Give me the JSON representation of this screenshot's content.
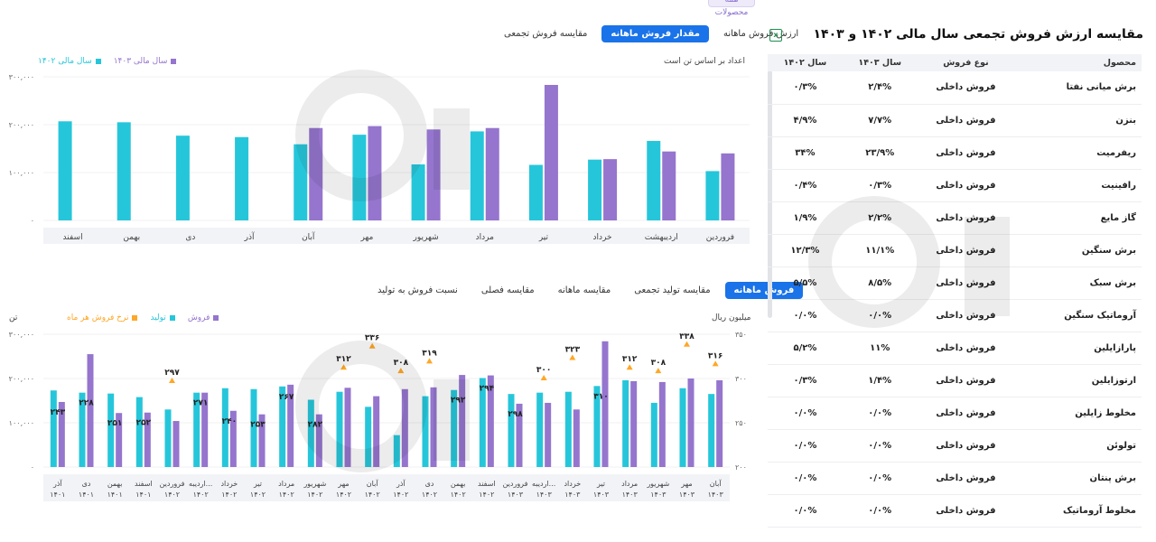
{
  "top_tag": "همه محصولات",
  "chart1": {
    "tabs": [
      "ارزش فروش ماهانه",
      "مقدار فروش ماهانه",
      "مقایسه فروش تجمعی"
    ],
    "active_tab": 1,
    "note": "اعداد بر اساس تن است",
    "legend": [
      {
        "name": "سال مالی ۱۴۰۳",
        "color": "#9575cd"
      },
      {
        "name": "سال مالی ۱۴۰۲",
        "color": "#26c6da"
      }
    ],
    "chart_data": {
      "type": "bar",
      "categories": [
        "فروردین",
        "اردیبهشت",
        "خرداد",
        "تیر",
        "مرداد",
        "شهریور",
        "مهر",
        "آبان",
        "آذر",
        "دی",
        "بهمن",
        "اسفند"
      ],
      "series": [
        {
          "name": "سال مالی ۱۴۰۲",
          "color": "#26c6da",
          "values": [
            103000,
            166000,
            127000,
            116000,
            186000,
            117000,
            179000,
            159000,
            174000,
            177000,
            205000,
            207000
          ]
        },
        {
          "name": "سال مالی ۱۴۰۳",
          "color": "#9575cd",
          "values": [
            140000,
            144000,
            128000,
            283000,
            193000,
            190000,
            197000,
            193000,
            null,
            null,
            null,
            null
          ]
        }
      ],
      "yticks": [
        "۰",
        "۱۰۰,۰۰۰",
        "۲۰۰,۰۰۰",
        "۳۰۰,۰۰۰"
      ],
      "ylim": [
        0,
        300000
      ],
      "direction": "rtl"
    }
  },
  "chart2": {
    "tabs": [
      "فروش ماهانه",
      "مقایسه تولید تجمعی",
      "مقایسه ماهانه",
      "مقایسه فصلی",
      "نسبت فروش به تولید"
    ],
    "active_tab": 0,
    "left_unit": "تن",
    "right_unit": "میلیون ریال",
    "legend": [
      {
        "name": "فروش",
        "color": "#9575cd"
      },
      {
        "name": "تولید",
        "color": "#26c6da"
      },
      {
        "name": "نرخ فروش هر ماه",
        "color": "#ffa726"
      }
    ],
    "chart_data": {
      "type": "bar",
      "categories": [
        [
          "آذر",
          "۱۴۰۱"
        ],
        [
          "دی",
          "۱۴۰۱"
        ],
        [
          "بهمن",
          "۱۴۰۱"
        ],
        [
          "اسفند",
          "۱۴۰۱"
        ],
        [
          "فروردین",
          "۱۴۰۲"
        ],
        [
          "اردیبه...",
          "۱۴۰۲"
        ],
        [
          "خرداد",
          "۱۴۰۲"
        ],
        [
          "تیر",
          "۱۴۰۲"
        ],
        [
          "مرداد",
          "۱۴۰۲"
        ],
        [
          "شهریور",
          "۱۴۰۲"
        ],
        [
          "مهر",
          "۱۴۰۲"
        ],
        [
          "آبان",
          "۱۴۰۲"
        ],
        [
          "آذر",
          "۱۴۰۲"
        ],
        [
          "دی",
          "۱۴۰۲"
        ],
        [
          "بهمن",
          "۱۴۰۲"
        ],
        [
          "اسفند",
          "۱۴۰۲"
        ],
        [
          "فروردین",
          "۱۴۰۳"
        ],
        [
          "اردیبه...",
          "۱۴۰۳"
        ],
        [
          "خرداد",
          "۱۴۰۳"
        ],
        [
          "تیر",
          "۱۴۰۳"
        ],
        [
          "مرداد",
          "۱۴۰۳"
        ],
        [
          "شهریور",
          "۱۴۰۳"
        ],
        [
          "مهر",
          "۱۴۰۳"
        ],
        [
          "آبان",
          "۱۴۰۳"
        ]
      ],
      "series": [
        {
          "name": "تولید",
          "color": "#26c6da",
          "axis": "left",
          "values": [
            173000,
            168000,
            166000,
            158000,
            130000,
            168000,
            178000,
            176000,
            182000,
            152000,
            170000,
            136000,
            72000,
            160000,
            174000,
            201000,
            165000,
            168000,
            170000,
            183000,
            196000,
            145000,
            178000,
            165000
          ]
        },
        {
          "name": "فروش",
          "color": "#9575cd",
          "axis": "left",
          "values": [
            147000,
            255000,
            122000,
            123000,
            104000,
            168000,
            127000,
            119000,
            186000,
            119000,
            179000,
            160000,
            176000,
            180000,
            208000,
            207000,
            143000,
            145000,
            130000,
            284000,
            194000,
            192000,
            200000,
            196000
          ]
        },
        {
          "name": "نرخ فروش هر ماه",
          "color": "#ffa726",
          "axis": "right",
          "values": [
            null,
            null,
            null,
            null,
            297,
            null,
            null,
            null,
            null,
            null,
            312,
            336,
            308,
            319,
            null,
            null,
            null,
            300,
            323,
            null,
            312,
            308,
            338,
            316
          ]
        }
      ],
      "value_labels": [
        "۲۴۳",
        "۲۲۸",
        "۲۵۱",
        "۲۵۲",
        "۲۹۷",
        "۲۷۱",
        "۲۴۰",
        "۲۵۳",
        "۲۶۷",
        "۲۸۲",
        "۳۱۲",
        "۳۳۶",
        "۳۰۸",
        "۳۱۹",
        "۲۹۲",
        "۲۹۴",
        "۲۹۸",
        "۳۰۰",
        "۳۲۳",
        "۳۱۰",
        "۳۱۲",
        "۳۰۸",
        "۳۳۸",
        "۳۱۶"
      ],
      "left_yticks": [
        "۰",
        "۱۰۰,۰۰۰",
        "۲۰۰,۰۰۰",
        "۳۰۰,۰۰۰"
      ],
      "left_ylim": [
        0,
        300000
      ],
      "right_yticks": [
        "۲۰۰",
        "۲۵۰",
        "۳۰۰",
        "۳۵۰"
      ],
      "right_ylim": [
        200,
        350
      ]
    }
  },
  "table": {
    "title": "مقایسه ارزش فروش تجمعی سال مالی ۱۴۰۲ و ۱۴۰۳",
    "columns": [
      "محصول",
      "نوع فروش",
      "سال ۱۴۰۳",
      "سال ۱۴۰۲"
    ],
    "rows": [
      [
        "برش میانی نفتا",
        "فروش داخلی",
        "۲/۴%",
        "۰/۳%"
      ],
      [
        "بنزن",
        "فروش داخلی",
        "۷/۷%",
        "۴/۹%"
      ],
      [
        "ریفرمیت",
        "فروش داخلی",
        "۲۳/۹%",
        "۳۴%"
      ],
      [
        "رافینیت",
        "فروش داخلی",
        "۰/۳%",
        "۰/۴%"
      ],
      [
        "گاز مایع",
        "فروش داخلی",
        "۲/۲%",
        "۱/۹%"
      ],
      [
        "برش سنگین",
        "فروش داخلی",
        "۱۱/۱%",
        "۱۲/۳%"
      ],
      [
        "برش سبک",
        "فروش داخلی",
        "۸/۵%",
        "۵/۵%"
      ],
      [
        "آروماتیک سنگین",
        "فروش داخلی",
        "۰/۰%",
        "۰/۰%"
      ],
      [
        "پارازایلین",
        "فروش داخلی",
        "۱۱%",
        "۵/۲%"
      ],
      [
        "ارتوزایلین",
        "فروش داخلی",
        "۱/۴%",
        "۰/۳%"
      ],
      [
        "مخلوط زایلین",
        "فروش داخلی",
        "۰/۰%",
        "۰/۰%"
      ],
      [
        "تولوئن",
        "فروش داخلی",
        "۰/۰%",
        "۰/۰%"
      ],
      [
        "برش پنتان",
        "فروش داخلی",
        "۰/۰%",
        "۰/۰%"
      ],
      [
        "مخلوط آروماتیک",
        "فروش داخلی",
        "۰/۰%",
        "۰/۰%"
      ]
    ]
  }
}
